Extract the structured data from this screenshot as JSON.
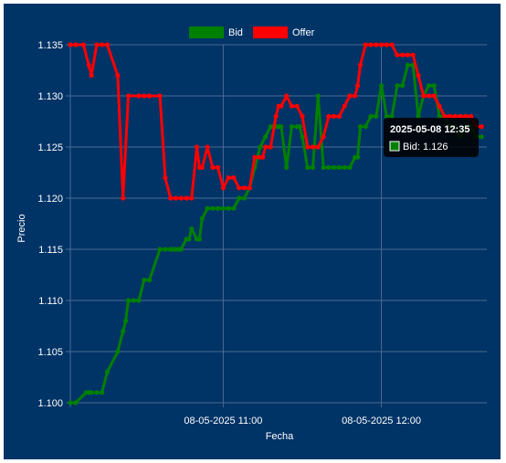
{
  "chart_data": {
    "type": "line",
    "title": "",
    "xlabel": "Fecha",
    "ylabel": "Precio",
    "ylim": [
      1.1,
      1.135
    ],
    "y_ticks": [
      "1.135",
      "1.130",
      "1.125",
      "1.120",
      "1.115",
      "1.110",
      "1.105",
      "1.100"
    ],
    "x_ticks": [
      "08-05-2025 11:00",
      "08-05-2025 12:00"
    ],
    "x_tick_values": [
      60,
      120
    ],
    "xlim": [
      2,
      160
    ],
    "x_unit": "minutes after 08-05-2025 10:00",
    "grid": true,
    "legend_position": "top-center",
    "background_color": "#003366",
    "grid_color": "#4d6b94",
    "series": [
      {
        "name": "Bid",
        "color": "#008000",
        "x": [
          2,
          4,
          8,
          9,
          10,
          12,
          14,
          16,
          20,
          22,
          23,
          24,
          26,
          28,
          30,
          32,
          36,
          38,
          40,
          41,
          42,
          43,
          44,
          46,
          47,
          48,
          50,
          51,
          52,
          54,
          56,
          58,
          60,
          62,
          64,
          66,
          68,
          70,
          72,
          74,
          76,
          78,
          79,
          80,
          81,
          82,
          84,
          86,
          88,
          89,
          90,
          92,
          94,
          96,
          98,
          100,
          102,
          104,
          106,
          108,
          110,
          111,
          112,
          114,
          116,
          118,
          120,
          122,
          124,
          126,
          128,
          130,
          132,
          134,
          136,
          138,
          140,
          142,
          144,
          146,
          148,
          150,
          152,
          154,
          156,
          158
        ],
        "values": [
          1.1,
          1.1,
          1.101,
          1.101,
          1.101,
          1.101,
          1.101,
          1.103,
          1.105,
          1.107,
          1.108,
          1.11,
          1.11,
          1.11,
          1.112,
          1.112,
          1.115,
          1.115,
          1.115,
          1.115,
          1.115,
          1.115,
          1.115,
          1.116,
          1.116,
          1.117,
          1.116,
          1.116,
          1.118,
          1.119,
          1.119,
          1.119,
          1.119,
          1.119,
          1.119,
          1.12,
          1.12,
          1.121,
          1.123,
          1.125,
          1.126,
          1.127,
          1.127,
          1.127,
          1.127,
          1.127,
          1.123,
          1.127,
          1.127,
          1.127,
          1.126,
          1.123,
          1.123,
          1.13,
          1.123,
          1.123,
          1.123,
          1.123,
          1.123,
          1.123,
          1.124,
          1.124,
          1.127,
          1.127,
          1.128,
          1.128,
          1.131,
          1.128,
          1.128,
          1.131,
          1.131,
          1.133,
          1.133,
          1.128,
          1.13,
          1.131,
          1.131,
          1.128,
          1.128,
          1.127,
          1.127,
          1.126,
          1.127,
          1.127,
          1.126,
          1.126
        ]
      },
      {
        "name": "Offer",
        "color": "#ff0000",
        "x": [
          2,
          4,
          7,
          9,
          10,
          12,
          14,
          16,
          20,
          22,
          24,
          28,
          30,
          32,
          36,
          38,
          40,
          42,
          44,
          46,
          48,
          50,
          51,
          52,
          54,
          56,
          58,
          60,
          62,
          64,
          66,
          68,
          70,
          72,
          74,
          75,
          76,
          78,
          80,
          81,
          82,
          84,
          86,
          88,
          90,
          92,
          94,
          96,
          98,
          100,
          102,
          104,
          106,
          108,
          110,
          111,
          112,
          114,
          116,
          118,
          120,
          122,
          124,
          126,
          128,
          130,
          132,
          134,
          136,
          138,
          140,
          142,
          144,
          146,
          148,
          150,
          152,
          154,
          156,
          158
        ],
        "values": [
          1.135,
          1.135,
          1.135,
          1.133,
          1.132,
          1.135,
          1.135,
          1.135,
          1.132,
          1.12,
          1.13,
          1.13,
          1.13,
          1.13,
          1.13,
          1.122,
          1.12,
          1.12,
          1.12,
          1.12,
          1.12,
          1.125,
          1.123,
          1.123,
          1.125,
          1.123,
          1.123,
          1.121,
          1.122,
          1.122,
          1.121,
          1.121,
          1.121,
          1.124,
          1.124,
          1.124,
          1.125,
          1.125,
          1.128,
          1.129,
          1.129,
          1.13,
          1.129,
          1.129,
          1.128,
          1.125,
          1.125,
          1.125,
          1.126,
          1.128,
          1.128,
          1.128,
          1.129,
          1.13,
          1.13,
          1.131,
          1.133,
          1.135,
          1.135,
          1.135,
          1.135,
          1.135,
          1.135,
          1.134,
          1.134,
          1.134,
          1.134,
          1.132,
          1.13,
          1.13,
          1.13,
          1.129,
          1.128,
          1.128,
          1.128,
          1.128,
          1.128,
          1.128,
          1.127,
          1.127
        ]
      }
    ],
    "tooltip": {
      "title": "2025-05-08 12:35",
      "label": "Bid: 1.126",
      "color": "#008000"
    }
  }
}
